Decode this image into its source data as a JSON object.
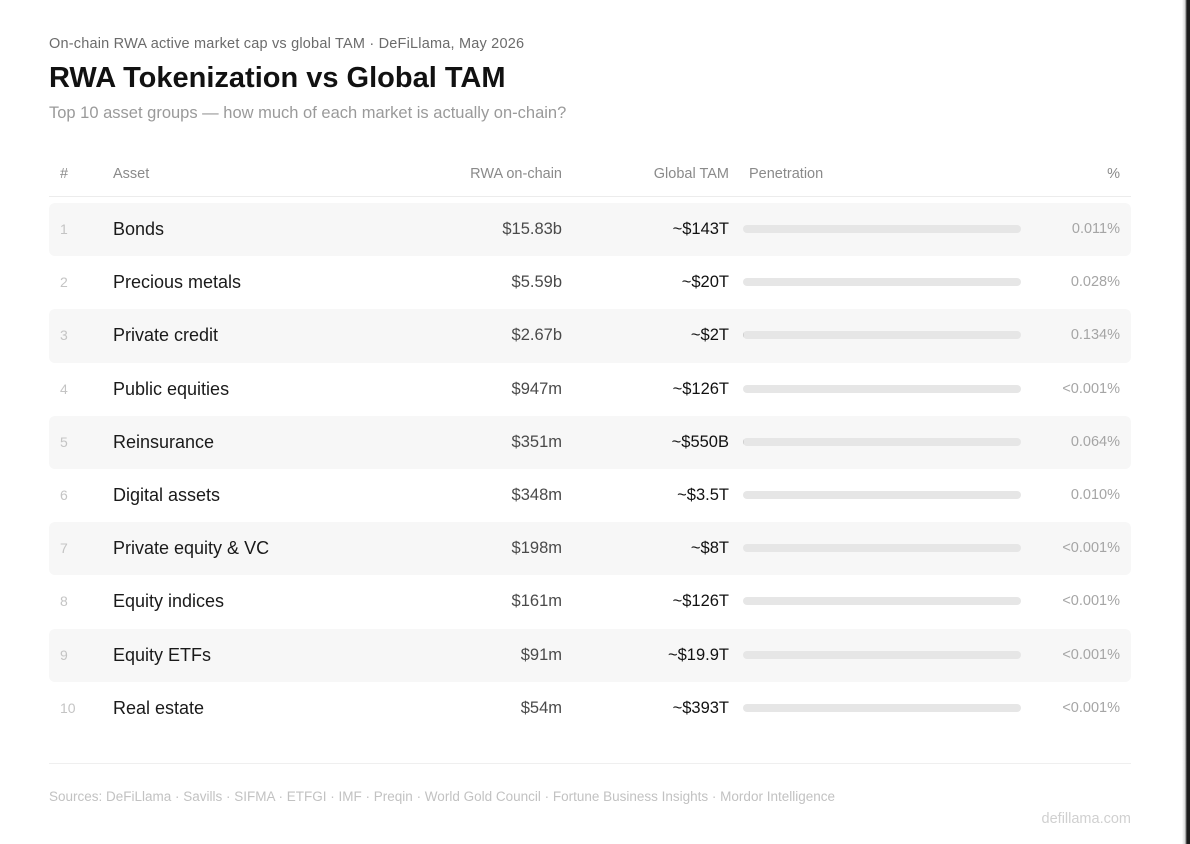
{
  "header": {
    "eyebrow": "On-chain RWA active market cap vs global TAM · DeFiLlama, May 2026",
    "title": "RWA Tokenization vs Global TAM",
    "subtitle": "Top 10 asset groups — how much of each market is actually on-chain?"
  },
  "columns": {
    "num": "#",
    "asset": "Asset",
    "rwa": "RWA on-chain",
    "tam": "Global TAM",
    "penetration": "Penetration",
    "pct": "%"
  },
  "chart_data": {
    "type": "table",
    "title": "RWA Tokenization vs Global TAM",
    "rows": [
      {
        "rank": "1",
        "asset": "Bonds",
        "rwa_onchain": "$15.83b",
        "global_tam": "~$143T",
        "penetration": "0.011%",
        "penetration_value": 0.011
      },
      {
        "rank": "2",
        "asset": "Precious metals",
        "rwa_onchain": "$5.59b",
        "global_tam": "~$20T",
        "penetration": "0.028%",
        "penetration_value": 0.028
      },
      {
        "rank": "3",
        "asset": "Private credit",
        "rwa_onchain": "$2.67b",
        "global_tam": "~$2T",
        "penetration": "0.134%",
        "penetration_value": 0.134
      },
      {
        "rank": "4",
        "asset": "Public equities",
        "rwa_onchain": "$947m",
        "global_tam": "~$126T",
        "penetration": "<0.001%",
        "penetration_value": 0.0008
      },
      {
        "rank": "5",
        "asset": "Reinsurance",
        "rwa_onchain": "$351m",
        "global_tam": "~$550B",
        "penetration": "0.064%",
        "penetration_value": 0.064
      },
      {
        "rank": "6",
        "asset": "Digital assets",
        "rwa_onchain": "$348m",
        "global_tam": "~$3.5T",
        "penetration": "0.010%",
        "penetration_value": 0.01
      },
      {
        "rank": "7",
        "asset": "Private equity & VC",
        "rwa_onchain": "$198m",
        "global_tam": "~$8T",
        "penetration": "<0.001%",
        "penetration_value": 0.0008
      },
      {
        "rank": "8",
        "asset": "Equity indices",
        "rwa_onchain": "$161m",
        "global_tam": "~$126T",
        "penetration": "<0.001%",
        "penetration_value": 0.0008
      },
      {
        "rank": "9",
        "asset": "Equity ETFs",
        "rwa_onchain": "$91m",
        "global_tam": "~$19.9T",
        "penetration": "<0.001%",
        "penetration_value": 0.0008
      },
      {
        "rank": "10",
        "asset": "Real estate",
        "rwa_onchain": "$54m",
        "global_tam": "~$393T",
        "penetration": "<0.001%",
        "penetration_value": 0.0008
      }
    ],
    "penetration_scale_max": 100
  },
  "footer": {
    "sources": "Sources: DeFiLlama · Savills · SIFMA · ETFGI · IMF · Preqin · World Gold Council · Fortune Business Insights · Mordor Intelligence",
    "brand": "defillama.com"
  },
  "colors": {
    "row_shade": "#f7f7f7",
    "bar_track": "#e6e6e6",
    "bar_fill": "#cfcfcf"
  }
}
